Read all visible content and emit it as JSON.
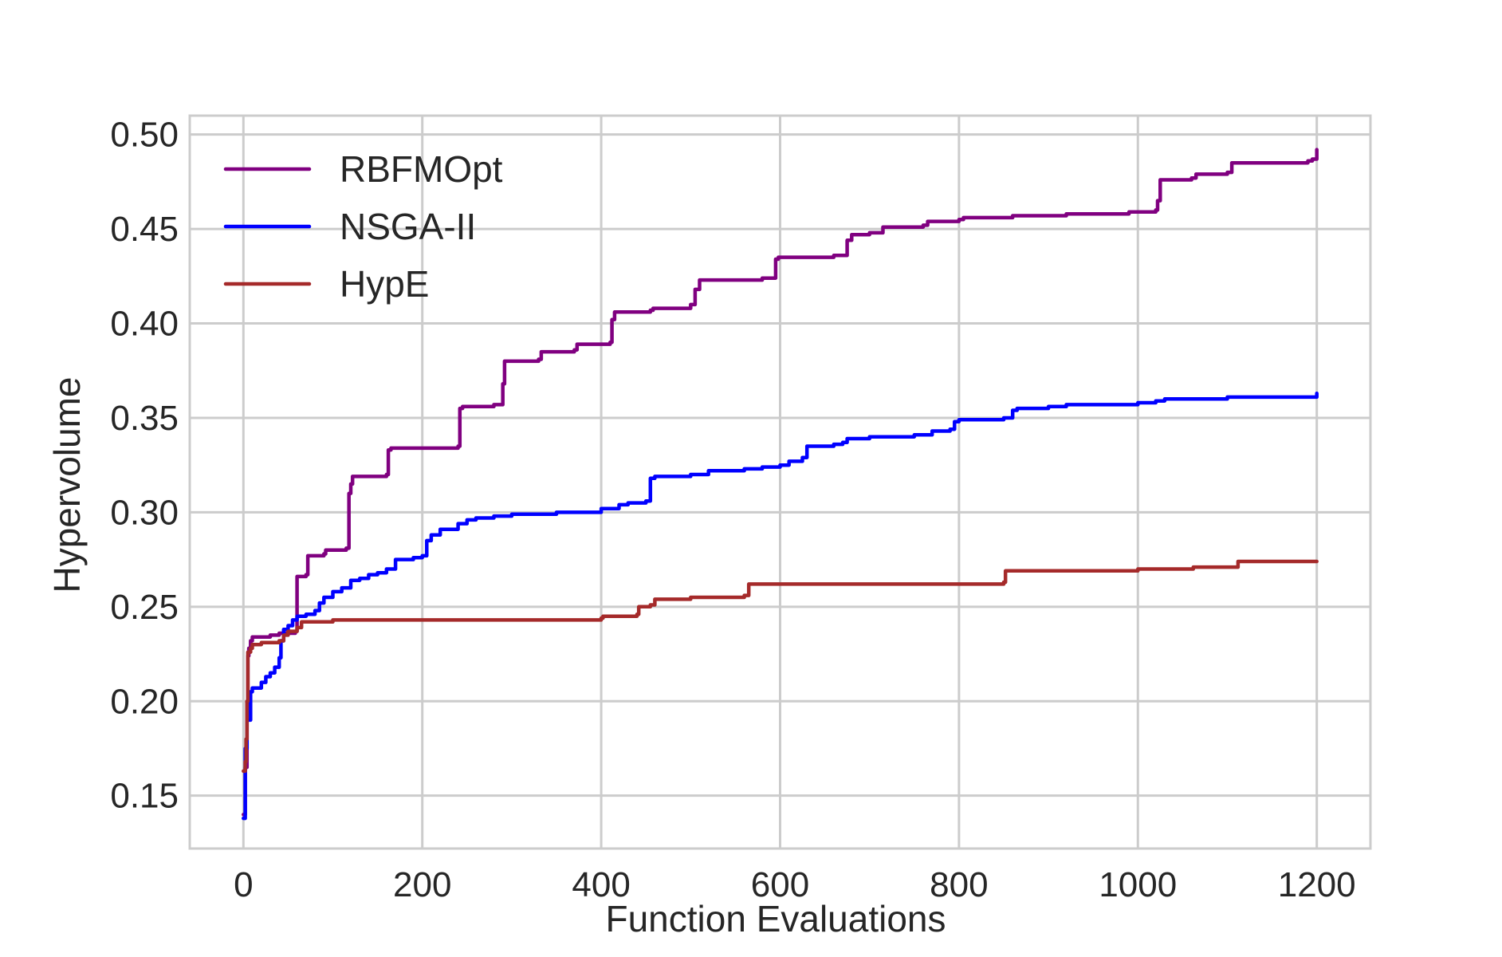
{
  "chart_data": {
    "type": "line",
    "title": "",
    "xlabel": "Function Evaluations",
    "ylabel": "Hypervolume",
    "xlim": [
      -60,
      1260
    ],
    "ylim": [
      0.122,
      0.51
    ],
    "xticks": [
      0,
      200,
      400,
      600,
      800,
      1000,
      1200
    ],
    "yticks": [
      0.15,
      0.2,
      0.25,
      0.3,
      0.35,
      0.4,
      0.45,
      0.5
    ],
    "xtick_labels": [
      "0",
      "200",
      "400",
      "600",
      "800",
      "1000",
      "1200"
    ],
    "ytick_labels": [
      "0.15",
      "0.20",
      "0.25",
      "0.30",
      "0.35",
      "0.40",
      "0.45",
      "0.50"
    ],
    "grid": true,
    "legend_position": "top-left",
    "series": [
      {
        "name": "RBFMOpt",
        "color": "#800080",
        "x": [
          0,
          2,
          4,
          5,
          6,
          8,
          10,
          30,
          40,
          58,
          60,
          70,
          72,
          90,
          92,
          115,
          118,
          120,
          122,
          160,
          162,
          165,
          240,
          242,
          245,
          280,
          290,
          292,
          330,
          333,
          370,
          373,
          410,
          412,
          415,
          455,
          458,
          500,
          505,
          510,
          580,
          595,
          598,
          660,
          675,
          680,
          700,
          715,
          760,
          765,
          800,
          805,
          860,
          865,
          920,
          925,
          990,
          995,
          1020,
          1022,
          1025,
          1060,
          1065,
          1100,
          1105,
          1190,
          1195,
          1200
        ],
        "y": [
          0.14,
          0.165,
          0.2,
          0.224,
          0.228,
          0.232,
          0.234,
          0.235,
          0.236,
          0.237,
          0.266,
          0.267,
          0.277,
          0.278,
          0.28,
          0.281,
          0.31,
          0.315,
          0.319,
          0.32,
          0.333,
          0.334,
          0.335,
          0.355,
          0.356,
          0.357,
          0.368,
          0.38,
          0.381,
          0.385,
          0.386,
          0.389,
          0.39,
          0.402,
          0.406,
          0.407,
          0.408,
          0.41,
          0.418,
          0.423,
          0.424,
          0.434,
          0.435,
          0.436,
          0.444,
          0.447,
          0.448,
          0.451,
          0.452,
          0.454,
          0.455,
          0.456,
          0.457,
          0.457,
          0.458,
          0.458,
          0.459,
          0.459,
          0.46,
          0.465,
          0.476,
          0.477,
          0.479,
          0.48,
          0.485,
          0.486,
          0.487,
          0.492
        ]
      },
      {
        "name": "NSGA-II",
        "color": "#0000ff",
        "x": [
          0,
          2,
          4,
          8,
          10,
          20,
          25,
          30,
          35,
          40,
          42,
          45,
          50,
          55,
          60,
          70,
          80,
          85,
          90,
          100,
          110,
          120,
          130,
          140,
          150,
          160,
          170,
          190,
          200,
          205,
          210,
          220,
          240,
          250,
          260,
          280,
          300,
          350,
          400,
          420,
          430,
          450,
          455,
          460,
          500,
          520,
          560,
          580,
          600,
          610,
          625,
          630,
          660,
          670,
          675,
          700,
          750,
          770,
          790,
          795,
          800,
          850,
          860,
          865,
          900,
          920,
          1000,
          1020,
          1030,
          1100,
          1200
        ],
        "y": [
          0.138,
          0.175,
          0.19,
          0.205,
          0.207,
          0.21,
          0.213,
          0.215,
          0.218,
          0.223,
          0.232,
          0.238,
          0.24,
          0.243,
          0.245,
          0.246,
          0.248,
          0.252,
          0.255,
          0.258,
          0.26,
          0.264,
          0.265,
          0.267,
          0.268,
          0.27,
          0.275,
          0.276,
          0.277,
          0.285,
          0.288,
          0.291,
          0.294,
          0.296,
          0.297,
          0.298,
          0.299,
          0.3,
          0.302,
          0.304,
          0.305,
          0.306,
          0.318,
          0.319,
          0.32,
          0.322,
          0.323,
          0.324,
          0.325,
          0.327,
          0.329,
          0.335,
          0.336,
          0.337,
          0.339,
          0.34,
          0.341,
          0.343,
          0.344,
          0.348,
          0.349,
          0.35,
          0.354,
          0.355,
          0.356,
          0.357,
          0.358,
          0.359,
          0.36,
          0.361,
          0.363
        ]
      },
      {
        "name": "HypE",
        "color": "#a52a2a",
        "x": [
          0,
          2,
          3,
          4,
          5,
          8,
          10,
          20,
          40,
          45,
          50,
          60,
          65,
          100,
          120,
          300,
          400,
          402,
          440,
          442,
          455,
          460,
          500,
          560,
          565,
          600,
          850,
          852,
          1000,
          1060,
          1062,
          1110,
          1112,
          1200
        ],
        "y": [
          0.163,
          0.168,
          0.18,
          0.2,
          0.226,
          0.228,
          0.23,
          0.231,
          0.232,
          0.235,
          0.237,
          0.239,
          0.242,
          0.243,
          0.243,
          0.243,
          0.244,
          0.245,
          0.246,
          0.25,
          0.251,
          0.254,
          0.255,
          0.256,
          0.262,
          0.262,
          0.263,
          0.269,
          0.27,
          0.27,
          0.271,
          0.271,
          0.274,
          0.274
        ]
      }
    ]
  }
}
